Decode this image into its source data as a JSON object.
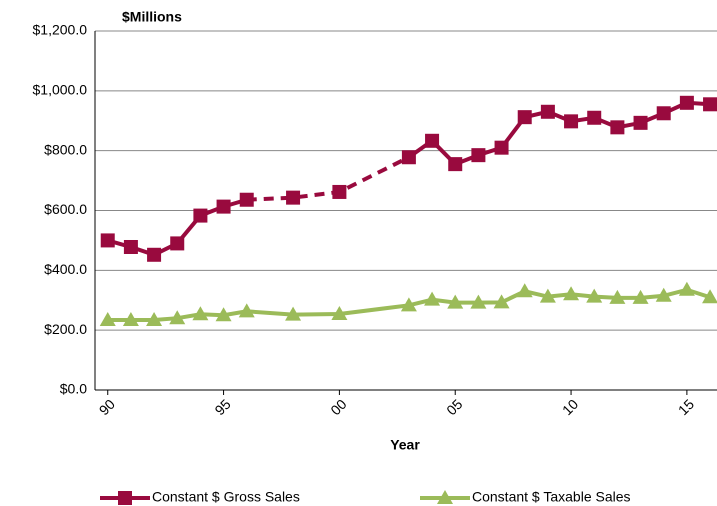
{
  "chart_data": {
    "type": "line",
    "y_axis_label": "$Millions",
    "x_axis_label": "Year",
    "x": [
      1990,
      1991,
      1992,
      1993,
      1994,
      1995,
      1996,
      1998,
      2000,
      2003,
      2004,
      2005,
      2006,
      2007,
      2008,
      2009,
      2010,
      2011,
      2012,
      2013,
      2014,
      2015,
      2016
    ],
    "xlim": [
      1989.45,
      2016.3
    ],
    "xticks": [
      {
        "value": 1990,
        "label": "90"
      },
      {
        "value": 1995,
        "label": "95"
      },
      {
        "value": 2000,
        "label": "00"
      },
      {
        "value": 2005,
        "label": "05"
      },
      {
        "value": 2010,
        "label": "10"
      },
      {
        "value": 2015,
        "label": "15"
      }
    ],
    "ylim": [
      0,
      1200
    ],
    "yticks": [
      {
        "value": 0,
        "label": "$0.0"
      },
      {
        "value": 200,
        "label": "$200.0"
      },
      {
        "value": 400,
        "label": "$400.0"
      },
      {
        "value": 600,
        "label": "$600.0"
      },
      {
        "value": 800,
        "label": "$800.0"
      },
      {
        "value": 1000,
        "label": "$1,000.0"
      },
      {
        "value": 1200,
        "label": "$1,200.0"
      }
    ],
    "grid": true,
    "legend": "bottom",
    "series": [
      {
        "name": "Constant $ Gross Sales",
        "color": "#990a3e",
        "marker": "square",
        "dashed_x": [
          1996,
          2003
        ],
        "values": [
          500,
          478,
          452,
          490,
          583,
          613,
          636,
          643,
          662,
          778,
          833,
          755,
          785,
          810,
          912,
          930,
          898,
          910,
          878,
          893,
          925,
          960,
          955
        ]
      },
      {
        "name": "Constant $ Taxable Sales",
        "color": "#9bbb59",
        "marker": "triangle",
        "values": [
          234,
          234,
          234,
          240,
          253,
          250,
          263,
          252,
          254,
          283,
          302,
          292,
          292,
          293,
          330,
          312,
          320,
          312,
          308,
          308,
          315,
          335,
          310
        ]
      }
    ]
  }
}
